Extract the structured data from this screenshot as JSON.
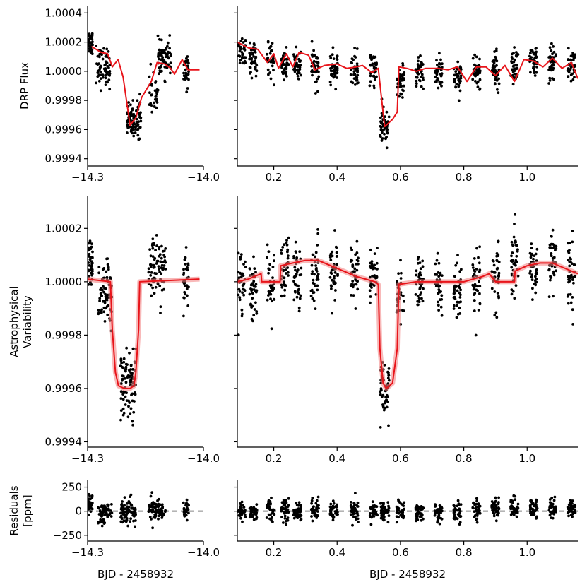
{
  "figure": {
    "xlabel_left": "BJD - 2458932",
    "xlabel_right": "BJD - 2458932"
  },
  "colors": {
    "points": "#000000",
    "model": "#e8141a",
    "model_band": "#f28080",
    "zero_line": "#888888"
  },
  "chart_data": [
    {
      "id": "top_left",
      "type": "scatter",
      "ylabel": "DRP Flux",
      "xlim": [
        -14.3,
        -14.0
      ],
      "ylim": [
        0.99935,
        1.00045
      ],
      "xticks": [
        {
          "v": -14.3,
          "label": "−14.3"
        },
        {
          "v": -14.0,
          "label": "−14.0"
        }
      ],
      "yticks": [
        {
          "v": 0.9994,
          "label": "0.9994"
        },
        {
          "v": 0.9996,
          "label": "0.9996"
        },
        {
          "v": 0.9998,
          "label": "0.9998"
        },
        {
          "v": 1.0,
          "label": "1.0000"
        },
        {
          "v": 1.0002,
          "label": "1.0002"
        },
        {
          "v": 1.0004,
          "label": "1.0004"
        }
      ],
      "model": {
        "x": [
          -14.29,
          -14.265,
          -14.248,
          -14.236,
          -14.221,
          -14.208,
          -14.19,
          -14.175,
          -14.16,
          -14.135,
          -14.12,
          -14.1,
          -14.085,
          -14.075,
          -14.055,
          -14.04,
          -14.01
        ],
        "y": [
          1.00017,
          1.00013,
          1.00012,
          1.00003,
          1.00008,
          0.99996,
          0.99963,
          0.99968,
          0.99982,
          0.99993,
          1.00006,
          1.00005,
          1.00002,
          0.99998,
          1.00008,
          1.00001,
          1.00001
        ]
      },
      "clusters": [
        {
          "x": -14.293,
          "w": 0.006,
          "y": 1.0002,
          "s": 6e-05,
          "n": 40
        },
        {
          "x": -14.26,
          "w": 0.018,
          "y": 1.00003,
          "s": 9e-05,
          "n": 70
        },
        {
          "x": -14.18,
          "w": 0.018,
          "y": 0.99967,
          "s": 8e-05,
          "n": 90
        },
        {
          "x": -14.13,
          "w": 0.012,
          "y": 0.99985,
          "s": 0.0001,
          "n": 30
        },
        {
          "x": -14.1,
          "w": 0.018,
          "y": 1.00008,
          "s": 8e-05,
          "n": 70
        },
        {
          "x": -14.045,
          "w": 0.007,
          "y": 1.00001,
          "s": 7e-05,
          "n": 30
        }
      ]
    },
    {
      "id": "top_right",
      "type": "scatter",
      "xlim": [
        0.085,
        1.16
      ],
      "ylim": [
        0.99935,
        1.00045
      ],
      "xticks": [
        {
          "v": 0.2,
          "label": "0.2"
        },
        {
          "v": 0.4,
          "label": "0.4"
        },
        {
          "v": 0.6,
          "label": "0.6"
        },
        {
          "v": 0.8,
          "label": "0.8"
        },
        {
          "v": 1.0,
          "label": "1.0"
        }
      ],
      "yticks": [
        {
          "v": 0.9994
        },
        {
          "v": 0.9996
        },
        {
          "v": 0.9998
        },
        {
          "v": 1.0
        },
        {
          "v": 1.0002
        },
        {
          "v": 1.0004
        }
      ],
      "model": {
        "x": [
          0.085,
          0.12,
          0.15,
          0.18,
          0.2,
          0.215,
          0.24,
          0.26,
          0.28,
          0.31,
          0.33,
          0.36,
          0.4,
          0.43,
          0.46,
          0.48,
          0.51,
          0.53,
          0.55,
          0.575,
          0.59,
          0.595,
          0.62,
          0.65,
          0.68,
          0.72,
          0.75,
          0.78,
          0.81,
          0.84,
          0.87,
          0.9,
          0.93,
          0.96,
          0.99,
          1.02,
          1.05,
          1.08,
          1.11,
          1.14,
          1.16
        ],
        "y": [
          1.0002,
          1.00016,
          1.00015,
          1.00006,
          1.00012,
          1.00002,
          1.00012,
          1.00003,
          1.00013,
          1.00011,
          1.00001,
          1.00004,
          1.00005,
          1.00002,
          1.00003,
          1.00004,
          0.99999,
          1.00002,
          0.99962,
          0.99967,
          0.99972,
          1.00003,
          1.00002,
          1.0,
          1.00002,
          1.00002,
          1.00001,
          1.00003,
          0.99993,
          1.00003,
          1.00003,
          0.99997,
          1.00004,
          0.99993,
          1.00008,
          1.00007,
          1.00003,
          1.00009,
          1.00002,
          1.00006,
          0.99995
        ]
      },
      "clusters": [
        {
          "x": 0.1,
          "w": 0.012,
          "y": 1.00012,
          "s": 8e-05,
          "n": 35
        },
        {
          "x": 0.135,
          "w": 0.012,
          "y": 1.00008,
          "s": 7e-05,
          "n": 40
        },
        {
          "x": 0.19,
          "w": 0.012,
          "y": 1.00006,
          "s": 8e-05,
          "n": 35
        },
        {
          "x": 0.235,
          "w": 0.012,
          "y": 1.00005,
          "s": 8e-05,
          "n": 40
        },
        {
          "x": 0.275,
          "w": 0.012,
          "y": 1.00004,
          "s": 8e-05,
          "n": 40
        },
        {
          "x": 0.33,
          "w": 0.012,
          "y": 1.00002,
          "s": 8e-05,
          "n": 40
        },
        {
          "x": 0.39,
          "w": 0.012,
          "y": 1.00002,
          "s": 8e-05,
          "n": 40
        },
        {
          "x": 0.455,
          "w": 0.012,
          "y": 1.00001,
          "s": 8e-05,
          "n": 40
        },
        {
          "x": 0.515,
          "w": 0.012,
          "y": 1.00001,
          "s": 8e-05,
          "n": 35
        },
        {
          "x": 0.55,
          "w": 0.014,
          "y": 0.99962,
          "s": 8e-05,
          "n": 50
        },
        {
          "x": 0.6,
          "w": 0.012,
          "y": 0.99993,
          "s": 7e-05,
          "n": 35
        },
        {
          "x": 0.66,
          "w": 0.012,
          "y": 0.99999,
          "s": 7e-05,
          "n": 40
        },
        {
          "x": 0.72,
          "w": 0.012,
          "y": 0.99999,
          "s": 7e-05,
          "n": 40
        },
        {
          "x": 0.78,
          "w": 0.012,
          "y": 0.99997,
          "s": 8e-05,
          "n": 40
        },
        {
          "x": 0.84,
          "w": 0.012,
          "y": 1.0,
          "s": 8e-05,
          "n": 40
        },
        {
          "x": 0.9,
          "w": 0.012,
          "y": 1.00001,
          "s": 8e-05,
          "n": 40
        },
        {
          "x": 0.96,
          "w": 0.012,
          "y": 1.00004,
          "s": 9e-05,
          "n": 40
        },
        {
          "x": 1.02,
          "w": 0.012,
          "y": 1.00005,
          "s": 8e-05,
          "n": 40
        },
        {
          "x": 1.08,
          "w": 0.012,
          "y": 1.00004,
          "s": 9e-05,
          "n": 40
        },
        {
          "x": 1.14,
          "w": 0.012,
          "y": 1.00003,
          "s": 8e-05,
          "n": 40
        }
      ]
    },
    {
      "id": "middle_left",
      "type": "scatter",
      "ylabel": "Astrophysical\nVariability",
      "xlim": [
        -14.3,
        -14.0
      ],
      "ylim": [
        0.99938,
        1.00032
      ],
      "xticks": [
        {
          "v": -14.3,
          "label": "−14.3"
        },
        {
          "v": -14.0,
          "label": "−14.0"
        }
      ],
      "yticks": [
        {
          "v": 0.9994,
          "label": "0.9994"
        },
        {
          "v": 0.9996,
          "label": "0.9996"
        },
        {
          "v": 0.9998,
          "label": "0.9998"
        },
        {
          "v": 1.0,
          "label": "1.0000"
        },
        {
          "v": 1.0002,
          "label": "1.0002"
        }
      ],
      "model": {
        "x": [
          -14.3,
          -14.241,
          -14.236,
          -14.228,
          -14.22,
          -14.205,
          -14.19,
          -14.18,
          -14.175,
          -14.168,
          -14.165,
          -14.01
        ],
        "y": [
          1.00001,
          1.0,
          0.99982,
          0.99966,
          0.99961,
          0.9996,
          0.9996,
          0.99961,
          0.99966,
          0.99982,
          1.0,
          1.00001
        ]
      },
      "clusters": [
        {
          "x": -14.293,
          "w": 0.006,
          "y": 1.00008,
          "s": 6e-05,
          "n": 40
        },
        {
          "x": -14.255,
          "w": 0.018,
          "y": 0.99995,
          "s": 8e-05,
          "n": 70
        },
        {
          "x": -14.195,
          "w": 0.02,
          "y": 0.99962,
          "s": 8e-05,
          "n": 90
        },
        {
          "x": -14.12,
          "w": 0.022,
          "y": 1.00004,
          "s": 8e-05,
          "n": 80
        },
        {
          "x": -14.045,
          "w": 0.007,
          "y": 1.00002,
          "s": 7e-05,
          "n": 30
        }
      ]
    },
    {
      "id": "middle_right",
      "type": "scatter",
      "xlim": [
        0.085,
        1.16
      ],
      "ylim": [
        0.99938,
        1.00032
      ],
      "xticks": [
        {
          "v": 0.2,
          "label": "0.2"
        },
        {
          "v": 0.4,
          "label": "0.4"
        },
        {
          "v": 0.6,
          "label": "0.6"
        },
        {
          "v": 0.8,
          "label": "0.8"
        },
        {
          "v": 1.0,
          "label": "1.0"
        }
      ],
      "yticks": [
        {
          "v": 0.9994
        },
        {
          "v": 0.9996
        },
        {
          "v": 0.9998
        },
        {
          "v": 1.0
        },
        {
          "v": 1.0002
        }
      ],
      "model": {
        "x": [
          0.085,
          0.12,
          0.16,
          0.162,
          0.22,
          0.222,
          0.26,
          0.3,
          0.34,
          0.38,
          0.42,
          0.46,
          0.52,
          0.53,
          0.535,
          0.545,
          0.555,
          0.575,
          0.59,
          0.595,
          0.65,
          0.8,
          0.86,
          0.88,
          0.9,
          0.96,
          0.962,
          1.0,
          1.04,
          1.08,
          1.12,
          1.16
        ],
        "y": [
          1.0,
          1.00001,
          1.00003,
          1.0,
          1.0,
          1.00006,
          1.00007,
          1.00008,
          1.00008,
          1.00006,
          1.00004,
          1.00002,
          1.0,
          0.99999,
          0.99975,
          0.99962,
          0.9996,
          0.99962,
          0.99975,
          0.99999,
          1.0,
          1.0,
          1.00002,
          1.00003,
          1.0,
          1.0,
          1.00004,
          1.00006,
          1.00007,
          1.00007,
          1.00005,
          1.00003
        ]
      },
      "clusters": [
        {
          "x": 0.1,
          "w": 0.012,
          "y": 1.0,
          "s": 8e-05,
          "n": 35
        },
        {
          "x": 0.135,
          "w": 0.012,
          "y": 0.99998,
          "s": 8e-05,
          "n": 40
        },
        {
          "x": 0.19,
          "w": 0.012,
          "y": 1.0,
          "s": 8e-05,
          "n": 35
        },
        {
          "x": 0.235,
          "w": 0.012,
          "y": 1.00003,
          "s": 9e-05,
          "n": 40
        },
        {
          "x": 0.275,
          "w": 0.012,
          "y": 1.00003,
          "s": 8e-05,
          "n": 40
        },
        {
          "x": 0.33,
          "w": 0.012,
          "y": 1.00004,
          "s": 8e-05,
          "n": 40
        },
        {
          "x": 0.39,
          "w": 0.012,
          "y": 1.00003,
          "s": 8e-05,
          "n": 40
        },
        {
          "x": 0.455,
          "w": 0.012,
          "y": 1.00002,
          "s": 8e-05,
          "n": 40
        },
        {
          "x": 0.515,
          "w": 0.012,
          "y": 1.00001,
          "s": 8e-05,
          "n": 35
        },
        {
          "x": 0.55,
          "w": 0.014,
          "y": 0.9996,
          "s": 8e-05,
          "n": 50
        },
        {
          "x": 0.6,
          "w": 0.012,
          "y": 0.99995,
          "s": 7e-05,
          "n": 35
        },
        {
          "x": 0.66,
          "w": 0.012,
          "y": 0.99999,
          "s": 7e-05,
          "n": 40
        },
        {
          "x": 0.72,
          "w": 0.012,
          "y": 0.99998,
          "s": 8e-05,
          "n": 40
        },
        {
          "x": 0.78,
          "w": 0.012,
          "y": 0.99997,
          "s": 8e-05,
          "n": 40
        },
        {
          "x": 0.84,
          "w": 0.012,
          "y": 0.99998,
          "s": 8e-05,
          "n": 40
        },
        {
          "x": 0.9,
          "w": 0.012,
          "y": 1.00001,
          "s": 9e-05,
          "n": 40
        },
        {
          "x": 0.96,
          "w": 0.012,
          "y": 1.00004,
          "s": 9e-05,
          "n": 40
        },
        {
          "x": 1.02,
          "w": 0.012,
          "y": 1.00006,
          "s": 8e-05,
          "n": 40
        },
        {
          "x": 1.08,
          "w": 0.012,
          "y": 1.00007,
          "s": 9e-05,
          "n": 40
        },
        {
          "x": 1.14,
          "w": 0.012,
          "y": 1.00004,
          "s": 8e-05,
          "n": 40
        }
      ]
    },
    {
      "id": "bottom_left",
      "type": "scatter",
      "ylabel": "Residuals\n[ppm]",
      "xlim": [
        -14.3,
        -14.0
      ],
      "ylim": [
        -310,
        320
      ],
      "xticks": [
        {
          "v": -14.3,
          "label": "−14.3"
        },
        {
          "v": -14.0,
          "label": "−14.0"
        }
      ],
      "yticks": [
        {
          "v": -250,
          "label": "−250"
        },
        {
          "v": 0,
          "label": "0"
        },
        {
          "v": 250,
          "label": "250"
        }
      ],
      "zero_line": 0,
      "clusters": [
        {
          "x": -14.293,
          "w": 0.006,
          "y": 80,
          "s": 60,
          "n": 30
        },
        {
          "x": -14.255,
          "w": 0.018,
          "y": -10,
          "s": 80,
          "n": 70
        },
        {
          "x": -14.195,
          "w": 0.02,
          "y": 0,
          "s": 80,
          "n": 80
        },
        {
          "x": -14.12,
          "w": 0.022,
          "y": 30,
          "s": 80,
          "n": 80
        },
        {
          "x": -14.045,
          "w": 0.007,
          "y": 10,
          "s": 60,
          "n": 30
        }
      ]
    },
    {
      "id": "bottom_right",
      "type": "scatter",
      "xlim": [
        0.085,
        1.16
      ],
      "ylim": [
        -310,
        320
      ],
      "xticks": [
        {
          "v": 0.2,
          "label": "0.2"
        },
        {
          "v": 0.4,
          "label": "0.4"
        },
        {
          "v": 0.6,
          "label": "0.6"
        },
        {
          "v": 0.8,
          "label": "0.8"
        },
        {
          "v": 1.0,
          "label": "1.0"
        }
      ],
      "yticks": [
        {
          "v": -250
        },
        {
          "v": 0
        },
        {
          "v": 250
        }
      ],
      "zero_line": 0,
      "clusters": [
        {
          "x": 0.1,
          "w": 0.012,
          "y": 0,
          "s": 70,
          "n": 35
        },
        {
          "x": 0.135,
          "w": 0.012,
          "y": -10,
          "s": 70,
          "n": 40
        },
        {
          "x": 0.19,
          "w": 0.012,
          "y": 0,
          "s": 70,
          "n": 35
        },
        {
          "x": 0.235,
          "w": 0.012,
          "y": 20,
          "s": 70,
          "n": 40
        },
        {
          "x": 0.275,
          "w": 0.012,
          "y": 0,
          "s": 70,
          "n": 40
        },
        {
          "x": 0.33,
          "w": 0.012,
          "y": 10,
          "s": 70,
          "n": 40
        },
        {
          "x": 0.39,
          "w": 0.012,
          "y": 0,
          "s": 70,
          "n": 40
        },
        {
          "x": 0.455,
          "w": 0.012,
          "y": 0,
          "s": 70,
          "n": 40
        },
        {
          "x": 0.515,
          "w": 0.012,
          "y": -5,
          "s": 70,
          "n": 35
        },
        {
          "x": 0.55,
          "w": 0.014,
          "y": 0,
          "s": 70,
          "n": 50
        },
        {
          "x": 0.6,
          "w": 0.012,
          "y": 0,
          "s": 70,
          "n": 35
        },
        {
          "x": 0.66,
          "w": 0.012,
          "y": -10,
          "s": 70,
          "n": 40
        },
        {
          "x": 0.72,
          "w": 0.012,
          "y": -10,
          "s": 70,
          "n": 40
        },
        {
          "x": 0.78,
          "w": 0.012,
          "y": -20,
          "s": 70,
          "n": 40
        },
        {
          "x": 0.84,
          "w": 0.012,
          "y": 10,
          "s": 70,
          "n": 40
        },
        {
          "x": 0.9,
          "w": 0.012,
          "y": 30,
          "s": 70,
          "n": 40
        },
        {
          "x": 0.96,
          "w": 0.012,
          "y": 40,
          "s": 70,
          "n": 40
        },
        {
          "x": 1.02,
          "w": 0.012,
          "y": 20,
          "s": 70,
          "n": 40
        },
        {
          "x": 1.08,
          "w": 0.012,
          "y": 30,
          "s": 70,
          "n": 40
        },
        {
          "x": 1.14,
          "w": 0.012,
          "y": 20,
          "s": 70,
          "n": 40
        }
      ]
    }
  ]
}
